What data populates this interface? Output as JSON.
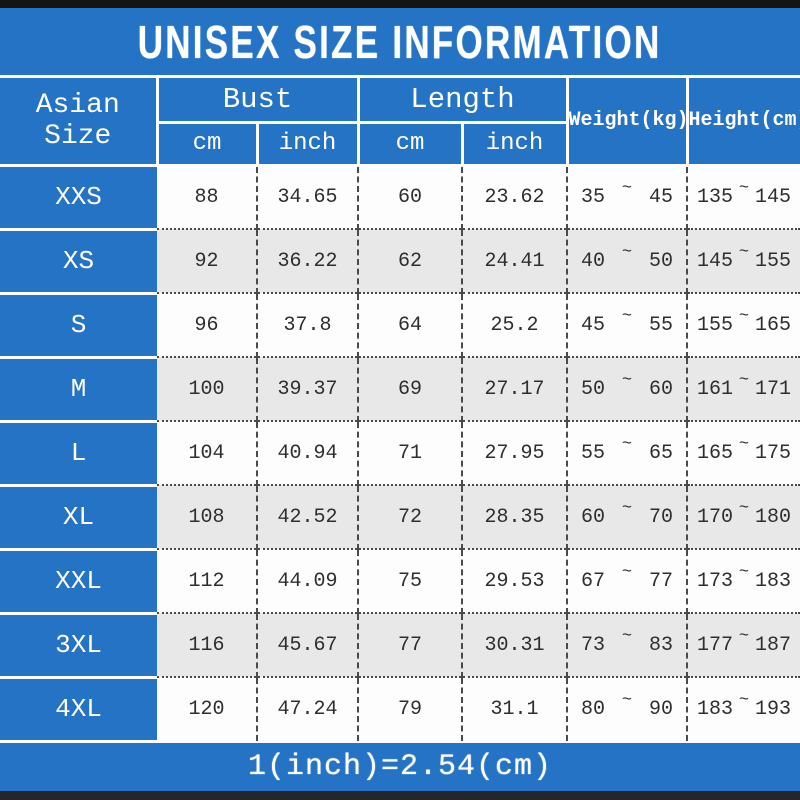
{
  "colors": {
    "table_blue": "#2573c5",
    "row_alt_gray": "#e8e8e8",
    "row_white": "#fdfdfd",
    "bar_top_black": "#141414",
    "bar_bottom_dark": "#23272c",
    "text_dark": "#2e2e2e",
    "divider_white": "#ffffff"
  },
  "chart_data": {
    "type": "table",
    "title": "UNISEX SIZE INFORMATION",
    "note": "1(inch)=2.54(cm)",
    "range_symbol": "~",
    "header": {
      "size": "Asian Size",
      "bust": "Bust",
      "length": "Length",
      "cm": "cm",
      "inch": "inch",
      "weight": "Weight(kg)",
      "height": "Height(cm)"
    },
    "rows": [
      {
        "size": "XXS",
        "bust_cm": "88",
        "bust_inch": "34.65",
        "length_cm": "60",
        "length_inch": "23.62",
        "weight_min": "35",
        "weight_max": "45",
        "height_min": "135",
        "height_max": "145"
      },
      {
        "size": "XS",
        "bust_cm": "92",
        "bust_inch": "36.22",
        "length_cm": "62",
        "length_inch": "24.41",
        "weight_min": "40",
        "weight_max": "50",
        "height_min": "145",
        "height_max": "155"
      },
      {
        "size": "S",
        "bust_cm": "96",
        "bust_inch": "37.8",
        "length_cm": "64",
        "length_inch": "25.2",
        "weight_min": "45",
        "weight_max": "55",
        "height_min": "155",
        "height_max": "165"
      },
      {
        "size": "M",
        "bust_cm": "100",
        "bust_inch": "39.37",
        "length_cm": "69",
        "length_inch": "27.17",
        "weight_min": "50",
        "weight_max": "60",
        "height_min": "161",
        "height_max": "171"
      },
      {
        "size": "L",
        "bust_cm": "104",
        "bust_inch": "40.94",
        "length_cm": "71",
        "length_inch": "27.95",
        "weight_min": "55",
        "weight_max": "65",
        "height_min": "165",
        "height_max": "175"
      },
      {
        "size": "XL",
        "bust_cm": "108",
        "bust_inch": "42.52",
        "length_cm": "72",
        "length_inch": "28.35",
        "weight_min": "60",
        "weight_max": "70",
        "height_min": "170",
        "height_max": "180"
      },
      {
        "size": "XXL",
        "bust_cm": "112",
        "bust_inch": "44.09",
        "length_cm": "75",
        "length_inch": "29.53",
        "weight_min": "67",
        "weight_max": "77",
        "height_min": "173",
        "height_max": "183"
      },
      {
        "size": "3XL",
        "bust_cm": "116",
        "bust_inch": "45.67",
        "length_cm": "77",
        "length_inch": "30.31",
        "weight_min": "73",
        "weight_max": "83",
        "height_min": "177",
        "height_max": "187"
      },
      {
        "size": "4XL",
        "bust_cm": "120",
        "bust_inch": "47.24",
        "length_cm": "79",
        "length_inch": "31.1",
        "weight_min": "80",
        "weight_max": "90",
        "height_min": "183",
        "height_max": "193"
      }
    ]
  }
}
